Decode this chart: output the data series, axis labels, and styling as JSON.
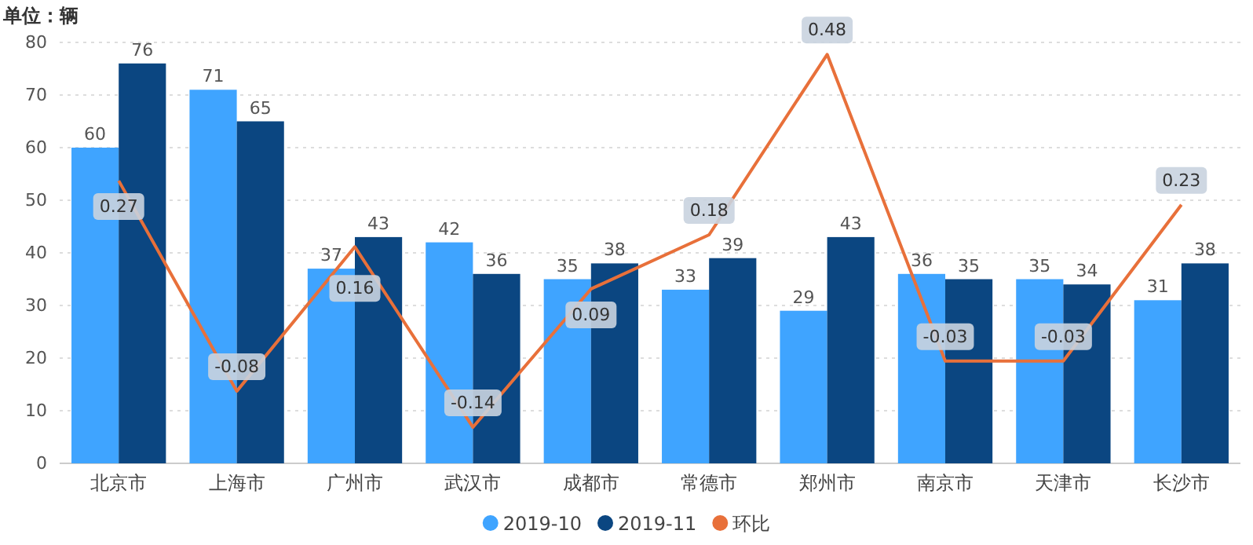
{
  "chart_data": {
    "type": "bar",
    "ylabel": "单位：辆",
    "categories": [
      "北京市",
      "上海市",
      "广州市",
      "武汉市",
      "成都市",
      "常德市",
      "郑州市",
      "南京市",
      "天津市",
      "长沙市"
    ],
    "series": [
      {
        "name": "2019-10",
        "color": "#3fa4ff",
        "values": [
          60,
          71,
          37,
          42,
          35,
          33,
          29,
          36,
          35,
          31
        ]
      },
      {
        "name": "2019-11",
        "color": "#0b4681",
        "values": [
          76,
          65,
          43,
          36,
          38,
          39,
          43,
          35,
          34,
          38
        ]
      },
      {
        "name": "环比",
        "type": "line",
        "axis": "y2",
        "color": "#e8703a",
        "values": [
          0.27,
          -0.08,
          0.16,
          -0.14,
          0.09,
          0.18,
          0.48,
          -0.03,
          -0.03,
          0.23
        ]
      }
    ],
    "ylim": [
      0,
      80
    ],
    "yticks": [
      0,
      10,
      20,
      30,
      40,
      50,
      60,
      70,
      80
    ],
    "y2lim": [
      -0.2,
      0.5
    ],
    "grid": "y",
    "legend": "bottom",
    "data_labels": true,
    "line_style": "solid"
  }
}
